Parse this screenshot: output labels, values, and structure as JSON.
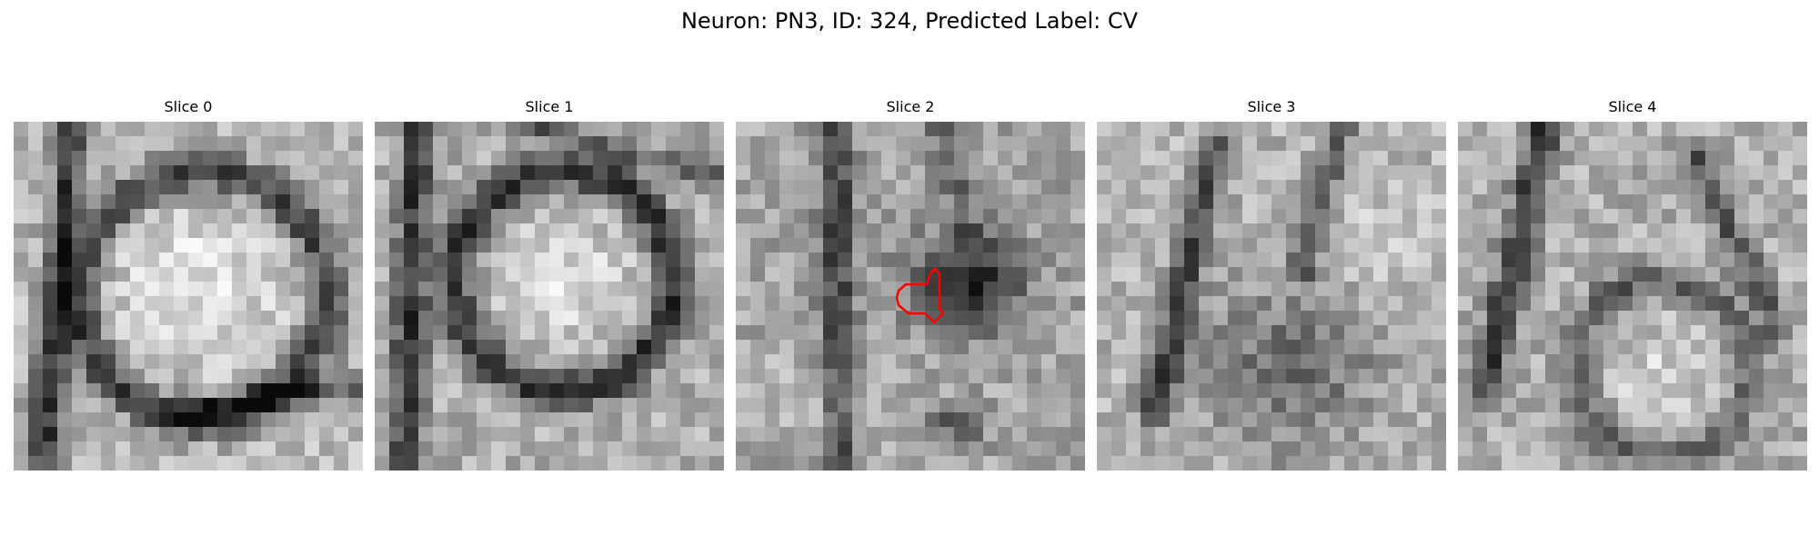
{
  "figure": {
    "title": "Neuron: PN3, ID: 324, Predicted Label: CV"
  },
  "panels": [
    {
      "title": "Slice 0",
      "has_outline": false
    },
    {
      "title": "Slice 1",
      "has_outline": false
    },
    {
      "title": "Slice 2",
      "has_outline": true
    },
    {
      "title": "Slice 3",
      "has_outline": false
    },
    {
      "title": "Slice 4",
      "has_outline": false
    }
  ],
  "style": {
    "outline_color": "#ff0000",
    "colormap": "grayscale"
  }
}
